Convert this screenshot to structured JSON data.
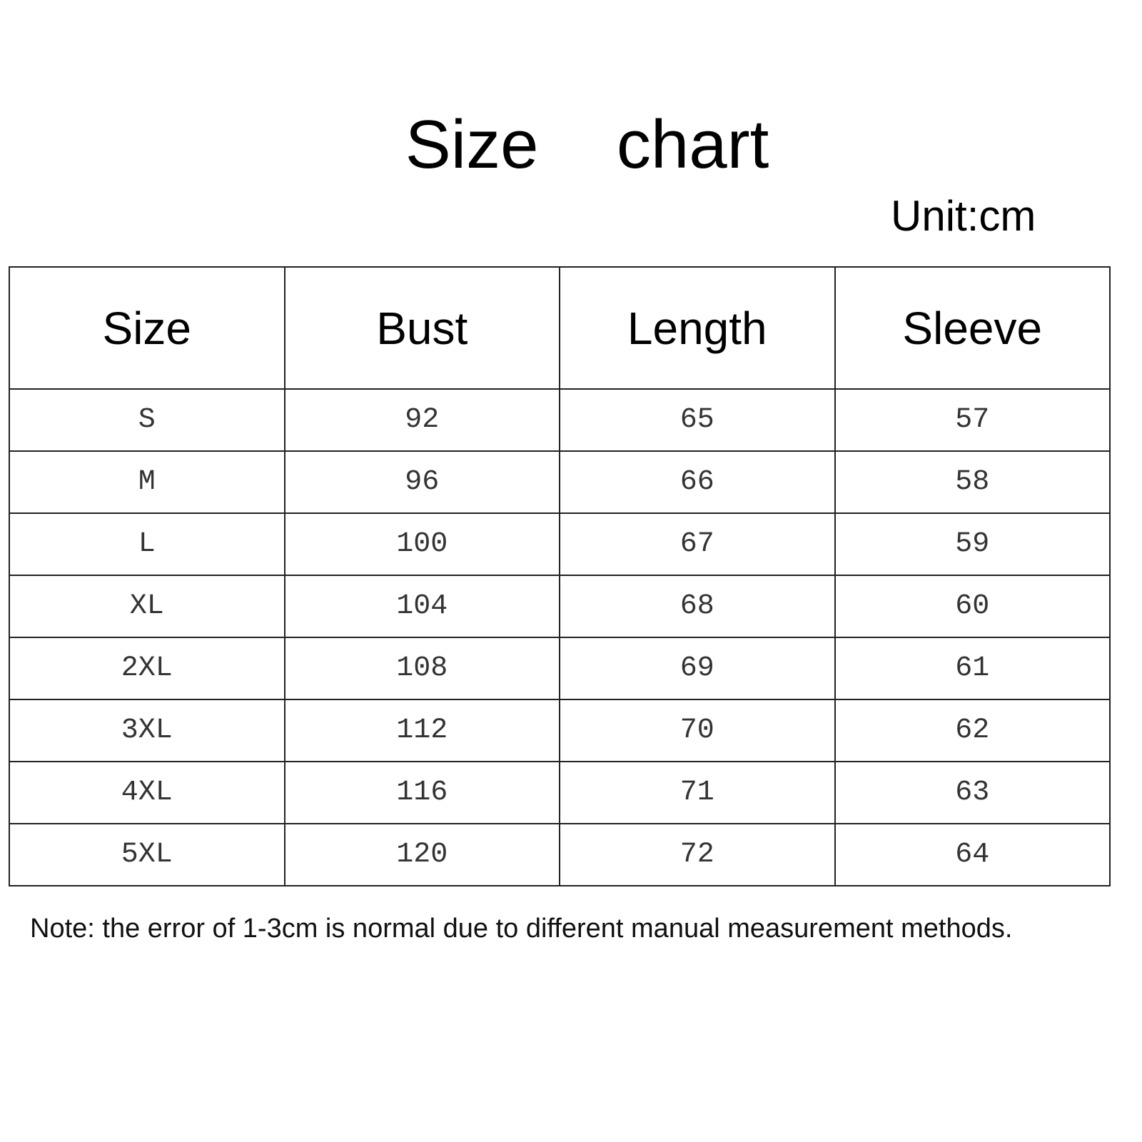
{
  "title": "Size  chart",
  "unit": "Unit:cm",
  "table": {
    "headers": [
      "Size",
      "Bust",
      "Length",
      "Sleeve"
    ],
    "rows": [
      [
        "S",
        "92",
        "65",
        "57"
      ],
      [
        "M",
        "96",
        "66",
        "58"
      ],
      [
        "L",
        "100",
        "67",
        "59"
      ],
      [
        "XL",
        "104",
        "68",
        "60"
      ],
      [
        "2XL",
        "108",
        "69",
        "61"
      ],
      [
        "3XL",
        "112",
        "70",
        "62"
      ],
      [
        "4XL",
        "116",
        "71",
        "63"
      ],
      [
        "5XL",
        "120",
        "72",
        "64"
      ]
    ]
  },
  "note": "Note: the error of 1-3cm is normal due to different manual measurement methods."
}
